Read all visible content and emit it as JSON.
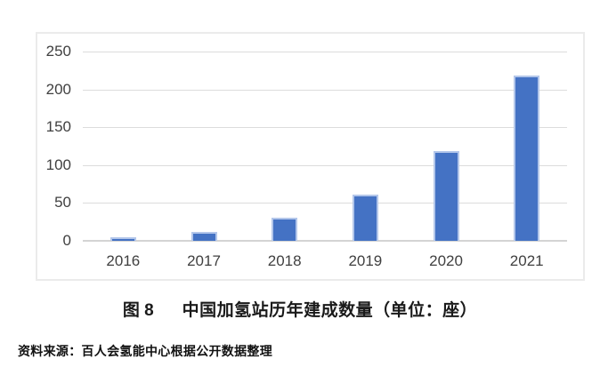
{
  "caption": {
    "figure_label": "图 8",
    "title": "中国加氢站历年建成数量（单位：座）"
  },
  "source_note": "资料来源：百人会氢能中心根据公开数据整理",
  "chart_data": {
    "type": "bar",
    "title": "中国加氢站历年建成数量",
    "unit": "座",
    "categories": [
      "2016",
      "2017",
      "2018",
      "2019",
      "2020",
      "2021"
    ],
    "values": [
      5,
      12,
      30,
      61,
      118,
      218
    ],
    "xlabel": "",
    "ylabel": "",
    "ylim": [
      0,
      250
    ],
    "yticks": [
      0,
      50,
      100,
      150,
      200,
      250
    ],
    "grid": true,
    "legend": false,
    "bar_color": "#4472c4",
    "gridline_color": "#dcdcdc"
  }
}
